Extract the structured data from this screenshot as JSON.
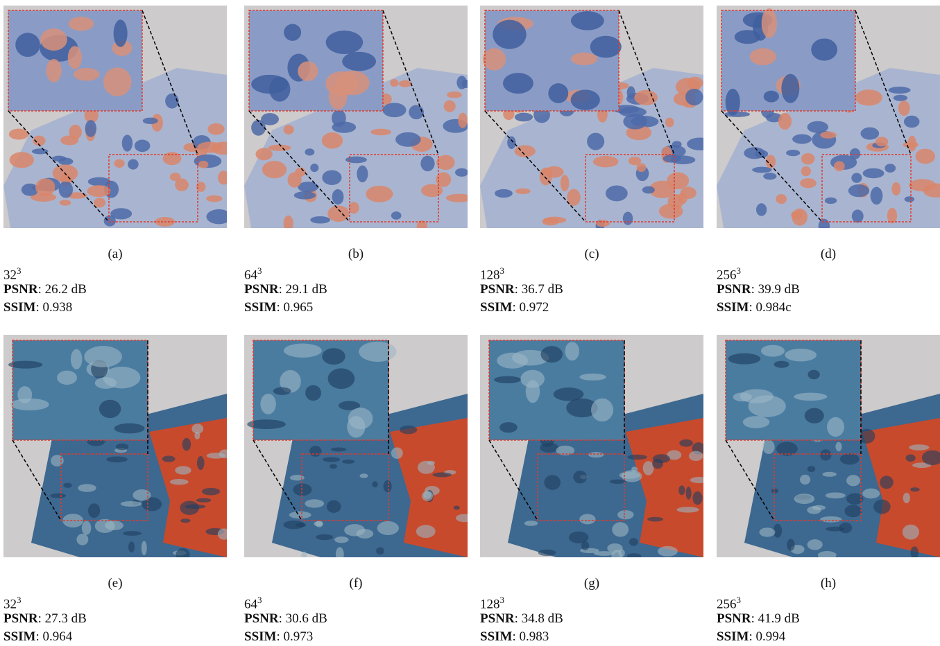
{
  "panels": [
    {
      "label": "(a)",
      "resolution": "32",
      "exponent": "3",
      "psnr_key": "PSNR",
      "psnr_value": ": 26.2 dB",
      "ssim_key": "SSIM",
      "ssim_value": ": 0.938"
    },
    {
      "label": "(b)",
      "resolution": "64",
      "exponent": "3",
      "psnr_key": "PSNR",
      "psnr_value": ": 29.1 dB",
      "ssim_key": "SSIM",
      "ssim_value": ": 0.965"
    },
    {
      "label": "(c)",
      "resolution": "128",
      "exponent": "3",
      "psnr_key": "PSNR",
      "psnr_value": ": 36.7 dB",
      "ssim_key": "SSIM",
      "ssim_value": ": 0.972"
    },
    {
      "label": "(d)",
      "resolution": "256",
      "exponent": "3",
      "psnr_key": "PSNR",
      "psnr_value": ": 39.9 dB",
      "ssim_key": "SSIM",
      "ssim_value": ": 0.984c"
    },
    {
      "label": "(e)",
      "resolution": "32",
      "exponent": "3",
      "psnr_key": "PSNR",
      "psnr_value": ": 27.3 dB",
      "ssim_key": "SSIM",
      "ssim_value": ": 0.964"
    },
    {
      "label": "(f)",
      "resolution": "64",
      "exponent": "3",
      "psnr_key": "PSNR",
      "psnr_value": ": 30.6 dB",
      "ssim_key": "SSIM",
      "ssim_value": ": 0.973"
    },
    {
      "label": "(g)",
      "resolution": "128",
      "exponent": "3",
      "psnr_key": "PSNR",
      "psnr_value": ": 34.8 dB",
      "ssim_key": "SSIM",
      "ssim_value": ": 0.983"
    },
    {
      "label": "(h)",
      "resolution": "256",
      "exponent": "3",
      "psnr_key": "PSNR",
      "psnr_value": ": 41.9 dB",
      "ssim_key": "SSIM",
      "ssim_value": ": 0.994"
    }
  ]
}
